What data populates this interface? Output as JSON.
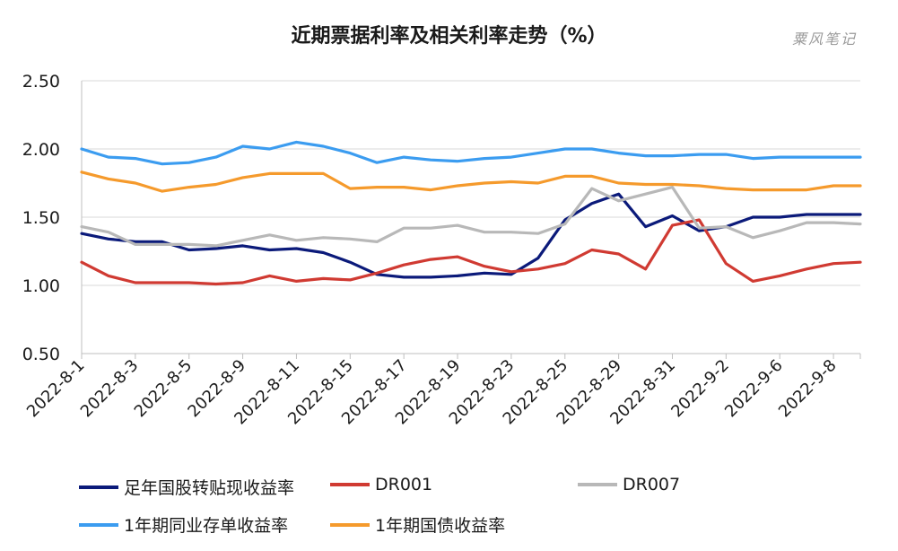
{
  "title": "近期票据利率及相关利率走势（%）",
  "watermark": "粟风笔记",
  "chart_data": {
    "type": "line",
    "title": "近期票据利率及相关利率走势（%）",
    "xlabel": "",
    "ylabel": "",
    "ylim": [
      0.5,
      2.5
    ],
    "yticks": [
      "0.50",
      "1.00",
      "1.50",
      "2.00",
      "2.50"
    ],
    "grid": true,
    "legend_position": "bottom",
    "x_tick_labels": [
      "2022-8-1",
      "2022-8-3",
      "2022-8-5",
      "2022-8-9",
      "2022-8-11",
      "2022-8-15",
      "2022-8-17",
      "2022-8-19",
      "2022-8-23",
      "2022-8-25",
      "2022-8-29",
      "2022-8-31",
      "2022-9-2",
      "2022-9-6",
      "2022-9-8"
    ],
    "n_points": 30,
    "series": [
      {
        "name": "足年国股转贴现收益率",
        "color": "#0b1a7a",
        "values": [
          1.38,
          1.34,
          1.32,
          1.32,
          1.26,
          1.27,
          1.29,
          1.26,
          1.27,
          1.24,
          1.17,
          1.08,
          1.06,
          1.06,
          1.07,
          1.09,
          1.08,
          1.2,
          1.48,
          1.6,
          1.67,
          1.43,
          1.51,
          1.4,
          1.43,
          1.5,
          1.5,
          1.52,
          1.52,
          1.52
        ]
      },
      {
        "name": "DR001",
        "color": "#d03a32",
        "values": [
          1.17,
          1.07,
          1.02,
          1.02,
          1.02,
          1.01,
          1.02,
          1.07,
          1.03,
          1.05,
          1.04,
          1.09,
          1.15,
          1.19,
          1.21,
          1.14,
          1.1,
          1.12,
          1.16,
          1.26,
          1.23,
          1.12,
          1.44,
          1.48,
          1.16,
          1.03,
          1.07,
          1.12,
          1.16,
          1.17
        ]
      },
      {
        "name": "DR007",
        "color": "#b8b8b8",
        "values": [
          1.43,
          1.39,
          1.3,
          1.3,
          1.3,
          1.29,
          1.33,
          1.37,
          1.33,
          1.35,
          1.34,
          1.32,
          1.42,
          1.42,
          1.44,
          1.39,
          1.39,
          1.38,
          1.45,
          1.71,
          1.62,
          1.67,
          1.72,
          1.42,
          1.43,
          1.35,
          1.4,
          1.46,
          1.46,
          1.45
        ]
      },
      {
        "name": "1年期同业存单收益率",
        "color": "#3b9cf0",
        "values": [
          2.0,
          1.94,
          1.93,
          1.89,
          1.9,
          1.94,
          2.02,
          2.0,
          2.05,
          2.02,
          1.97,
          1.9,
          1.94,
          1.92,
          1.91,
          1.93,
          1.94,
          1.97,
          2.0,
          2.0,
          1.97,
          1.95,
          1.95,
          1.96,
          1.96,
          1.93,
          1.94,
          1.94,
          1.94,
          1.94
        ]
      },
      {
        "name": "1年期国债收益率",
        "color": "#f59a2c",
        "values": [
          1.83,
          1.78,
          1.75,
          1.69,
          1.72,
          1.74,
          1.79,
          1.82,
          1.82,
          1.82,
          1.71,
          1.72,
          1.72,
          1.7,
          1.73,
          1.75,
          1.76,
          1.75,
          1.8,
          1.8,
          1.75,
          1.74,
          1.74,
          1.73,
          1.71,
          1.7,
          1.7,
          1.7,
          1.73,
          1.73
        ]
      }
    ]
  },
  "legend": {
    "items": [
      {
        "label": "足年国股转贴现收益率",
        "color": "#0b1a7a"
      },
      {
        "label": "DR001",
        "color": "#d03a32"
      },
      {
        "label": "DR007",
        "color": "#b8b8b8"
      },
      {
        "label": "1年期同业存单收益率",
        "color": "#3b9cf0"
      },
      {
        "label": "1年期国债收益率",
        "color": "#f59a2c"
      }
    ]
  }
}
